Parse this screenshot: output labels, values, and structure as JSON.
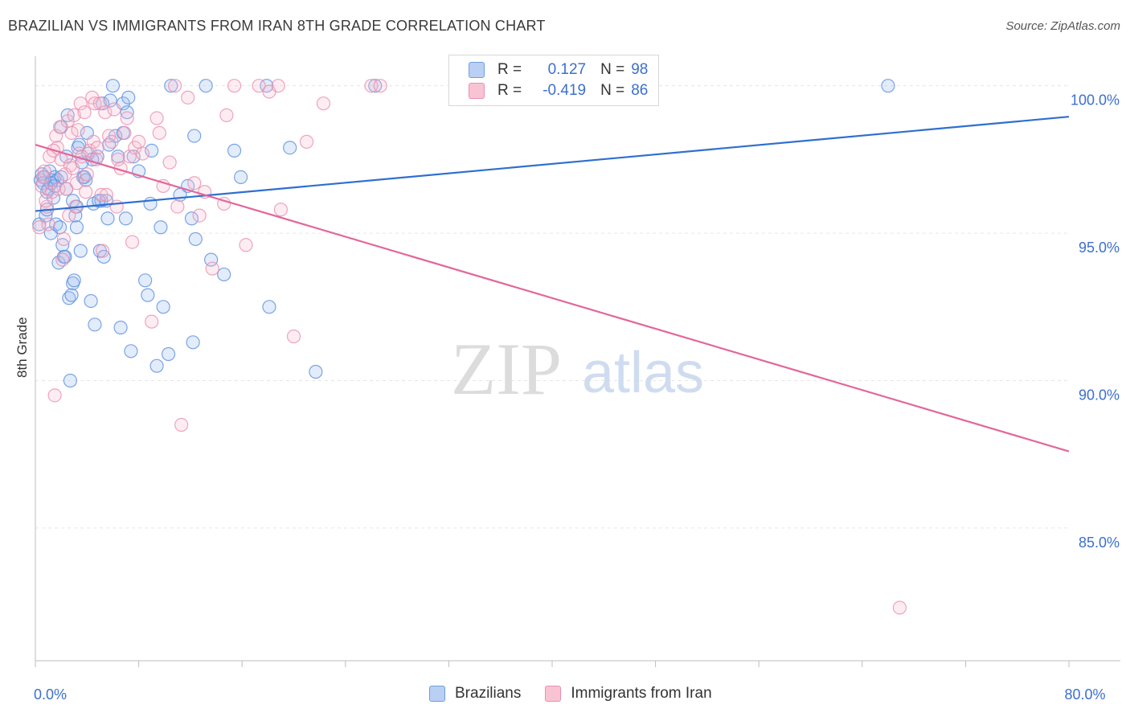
{
  "title": "BRAZILIAN VS IMMIGRANTS FROM IRAN 8TH GRADE CORRELATION CHART",
  "source": "Source: ZipAtlas.com",
  "watermark": {
    "zip": "ZIP",
    "atlas": "atlas"
  },
  "legend": {
    "r_label": "R =",
    "n_label": "N =",
    "rows": [
      {
        "r": "0.127",
        "n": "98",
        "color": "#6f9ee0",
        "fill": "#b9cff4"
      },
      {
        "r": "-0.419",
        "n": "86",
        "color": "#ea8fae",
        "fill": "#f8c4d4"
      }
    ]
  },
  "bottom_legend": [
    "Brazilians",
    "Immigrants from Iran"
  ],
  "chart_data": {
    "type": "scatter",
    "ylabel": "8th Grade",
    "xlim": [
      0,
      80
    ],
    "ylim": [
      80.5,
      101
    ],
    "x_tick_labels": [
      {
        "x": 0,
        "label": "0.0%"
      },
      {
        "x": 80,
        "label": "80.0%"
      }
    ],
    "y_ticks": [
      {
        "y": 100,
        "label": "100.0%"
      },
      {
        "y": 95,
        "label": "95.0%"
      },
      {
        "y": 90,
        "label": "90.0%"
      },
      {
        "y": 85,
        "label": "85.0%"
      }
    ],
    "x_minor_ticks": [
      0,
      8,
      16,
      24,
      32,
      40,
      48,
      56,
      64,
      72,
      80
    ],
    "grid": true,
    "series": [
      {
        "name": "Brazilians",
        "stroke": "#5b8ee0",
        "fill": "rgba(150,185,240,0.28)",
        "line_color": "#2f6fcf",
        "trend": [
          [
            0,
            95.75
          ],
          [
            80,
            98.95
          ]
        ],
        "points": [
          [
            0.3,
            95.3
          ],
          [
            0.4,
            96.8
          ],
          [
            0.5,
            97.0
          ],
          [
            0.6,
            96.7
          ],
          [
            0.7,
            96.9
          ],
          [
            0.8,
            95.6
          ],
          [
            0.9,
            96.4
          ],
          [
            1.0,
            96.5
          ],
          [
            1.1,
            97.1
          ],
          [
            1.2,
            95.0
          ],
          [
            1.3,
            96.8
          ],
          [
            1.4,
            96.2
          ],
          [
            1.5,
            96.9
          ],
          [
            1.6,
            95.3
          ],
          [
            1.7,
            96.8
          ],
          [
            1.8,
            94.0
          ],
          [
            1.9,
            95.2
          ],
          [
            2.0,
            96.9
          ],
          [
            2.1,
            94.6
          ],
          [
            2.2,
            94.2
          ],
          [
            2.3,
            94.2
          ],
          [
            2.4,
            97.6
          ],
          [
            2.5,
            99.0
          ],
          [
            2.6,
            92.8
          ],
          [
            2.7,
            90.0
          ],
          [
            2.8,
            92.9
          ],
          [
            2.9,
            93.3
          ],
          [
            3.0,
            93.4
          ],
          [
            3.1,
            95.6
          ],
          [
            3.2,
            95.2
          ],
          [
            3.3,
            97.9
          ],
          [
            3.4,
            98.0
          ],
          [
            3.5,
            94.4
          ],
          [
            3.6,
            97.4
          ],
          [
            3.7,
            96.9
          ],
          [
            3.8,
            96.9
          ],
          [
            4.0,
            98.4
          ],
          [
            4.1,
            97.7
          ],
          [
            4.3,
            92.7
          ],
          [
            4.5,
            96.0
          ],
          [
            4.6,
            91.9
          ],
          [
            4.8,
            97.6
          ],
          [
            5.0,
            94.4
          ],
          [
            5.1,
            96.1
          ],
          [
            5.2,
            99.4
          ],
          [
            5.3,
            94.2
          ],
          [
            5.5,
            96.1
          ],
          [
            5.6,
            95.5
          ],
          [
            5.8,
            99.5
          ],
          [
            6.0,
            100.0
          ],
          [
            6.2,
            98.3
          ],
          [
            6.4,
            97.6
          ],
          [
            6.6,
            91.8
          ],
          [
            6.8,
            99.4
          ],
          [
            7.0,
            95.5
          ],
          [
            7.1,
            99.1
          ],
          [
            7.2,
            99.6
          ],
          [
            7.4,
            91.0
          ],
          [
            7.6,
            97.6
          ],
          [
            8.0,
            97.1
          ],
          [
            8.5,
            93.4
          ],
          [
            8.7,
            92.9
          ],
          [
            8.9,
            96.0
          ],
          [
            9.0,
            97.8
          ],
          [
            9.4,
            90.5
          ],
          [
            9.7,
            95.2
          ],
          [
            9.9,
            92.5
          ],
          [
            10.3,
            90.9
          ],
          [
            10.5,
            100.0
          ],
          [
            11.2,
            96.3
          ],
          [
            11.8,
            96.6
          ],
          [
            12.1,
            95.5
          ],
          [
            12.2,
            91.3
          ],
          [
            12.3,
            98.3
          ],
          [
            12.4,
            94.8
          ],
          [
            13.2,
            100.0
          ],
          [
            13.6,
            94.1
          ],
          [
            14.6,
            93.6
          ],
          [
            15.4,
            97.8
          ],
          [
            15.9,
            96.9
          ],
          [
            17.9,
            100.0
          ],
          [
            18.1,
            92.5
          ],
          [
            19.7,
            97.9
          ],
          [
            21.7,
            90.3
          ],
          [
            26.3,
            100.0
          ],
          [
            66.0,
            100.0
          ],
          [
            4.4,
            97.5
          ],
          [
            3.9,
            96.8
          ],
          [
            2.0,
            98.6
          ],
          [
            1.5,
            96.6
          ],
          [
            0.9,
            95.8
          ],
          [
            2.9,
            96.1
          ],
          [
            5.7,
            98.0
          ],
          [
            6.8,
            98.4
          ],
          [
            4.9,
            96.1
          ],
          [
            3.2,
            95.9
          ],
          [
            1.2,
            96.7
          ],
          [
            2.4,
            96.5
          ]
        ]
      },
      {
        "name": "Immigrants from Iran",
        "stroke": "#ea8fae",
        "fill": "rgba(248,190,210,0.28)",
        "line_color": "#e2679a",
        "trend": [
          [
            0,
            98.0
          ],
          [
            80,
            87.6
          ]
        ],
        "points": [
          [
            0.3,
            95.2
          ],
          [
            0.5,
            96.6
          ],
          [
            0.7,
            97.1
          ],
          [
            0.9,
            95.9
          ],
          [
            1.1,
            97.6
          ],
          [
            1.3,
            96.4
          ],
          [
            1.5,
            89.5
          ],
          [
            1.6,
            98.3
          ],
          [
            1.7,
            97.9
          ],
          [
            1.8,
            96.5
          ],
          [
            1.9,
            98.6
          ],
          [
            2.0,
            97.5
          ],
          [
            2.1,
            94.1
          ],
          [
            2.2,
            94.8
          ],
          [
            2.4,
            96.5
          ],
          [
            2.5,
            98.8
          ],
          [
            2.6,
            95.6
          ],
          [
            2.7,
            97.3
          ],
          [
            2.8,
            98.4
          ],
          [
            3.0,
            99.0
          ],
          [
            3.1,
            95.9
          ],
          [
            3.2,
            96.7
          ],
          [
            3.4,
            97.7
          ],
          [
            3.5,
            99.4
          ],
          [
            3.6,
            97.6
          ],
          [
            3.8,
            99.1
          ],
          [
            3.9,
            96.4
          ],
          [
            4.0,
            97.0
          ],
          [
            4.2,
            97.8
          ],
          [
            4.4,
            99.6
          ],
          [
            4.5,
            98.1
          ],
          [
            4.6,
            99.4
          ],
          [
            4.8,
            97.9
          ],
          [
            5.0,
            99.4
          ],
          [
            5.1,
            96.3
          ],
          [
            5.2,
            94.4
          ],
          [
            5.4,
            99.1
          ],
          [
            5.5,
            96.3
          ],
          [
            5.7,
            98.3
          ],
          [
            5.9,
            98.1
          ],
          [
            6.1,
            99.2
          ],
          [
            6.4,
            97.5
          ],
          [
            6.6,
            97.2
          ],
          [
            6.9,
            98.4
          ],
          [
            7.1,
            98.9
          ],
          [
            7.3,
            97.6
          ],
          [
            7.5,
            94.7
          ],
          [
            7.7,
            97.9
          ],
          [
            8.0,
            98.1
          ],
          [
            8.3,
            97.7
          ],
          [
            9.0,
            92.0
          ],
          [
            9.4,
            98.9
          ],
          [
            9.6,
            98.4
          ],
          [
            9.9,
            96.6
          ],
          [
            10.4,
            97.4
          ],
          [
            10.8,
            100.0
          ],
          [
            11.0,
            95.9
          ],
          [
            11.3,
            88.5
          ],
          [
            11.8,
            99.6
          ],
          [
            12.3,
            96.7
          ],
          [
            12.7,
            95.6
          ],
          [
            13.1,
            96.4
          ],
          [
            13.7,
            93.8
          ],
          [
            14.6,
            96.0
          ],
          [
            14.8,
            99.0
          ],
          [
            15.4,
            100.0
          ],
          [
            16.3,
            94.6
          ],
          [
            17.3,
            100.0
          ],
          [
            18.1,
            99.8
          ],
          [
            18.8,
            100.0
          ],
          [
            19.0,
            95.8
          ],
          [
            20.0,
            91.5
          ],
          [
            21.0,
            98.1
          ],
          [
            22.3,
            99.4
          ],
          [
            26.0,
            100.0
          ],
          [
            26.7,
            100.0
          ],
          [
            66.9,
            82.3
          ],
          [
            1.0,
            95.3
          ],
          [
            0.8,
            96.1
          ],
          [
            2.3,
            97.0
          ],
          [
            1.4,
            97.8
          ],
          [
            3.3,
            98.5
          ],
          [
            4.7,
            97.5
          ],
          [
            6.3,
            95.9
          ],
          [
            0.6,
            96.9
          ],
          [
            2.9,
            97.2
          ]
        ]
      }
    ]
  }
}
